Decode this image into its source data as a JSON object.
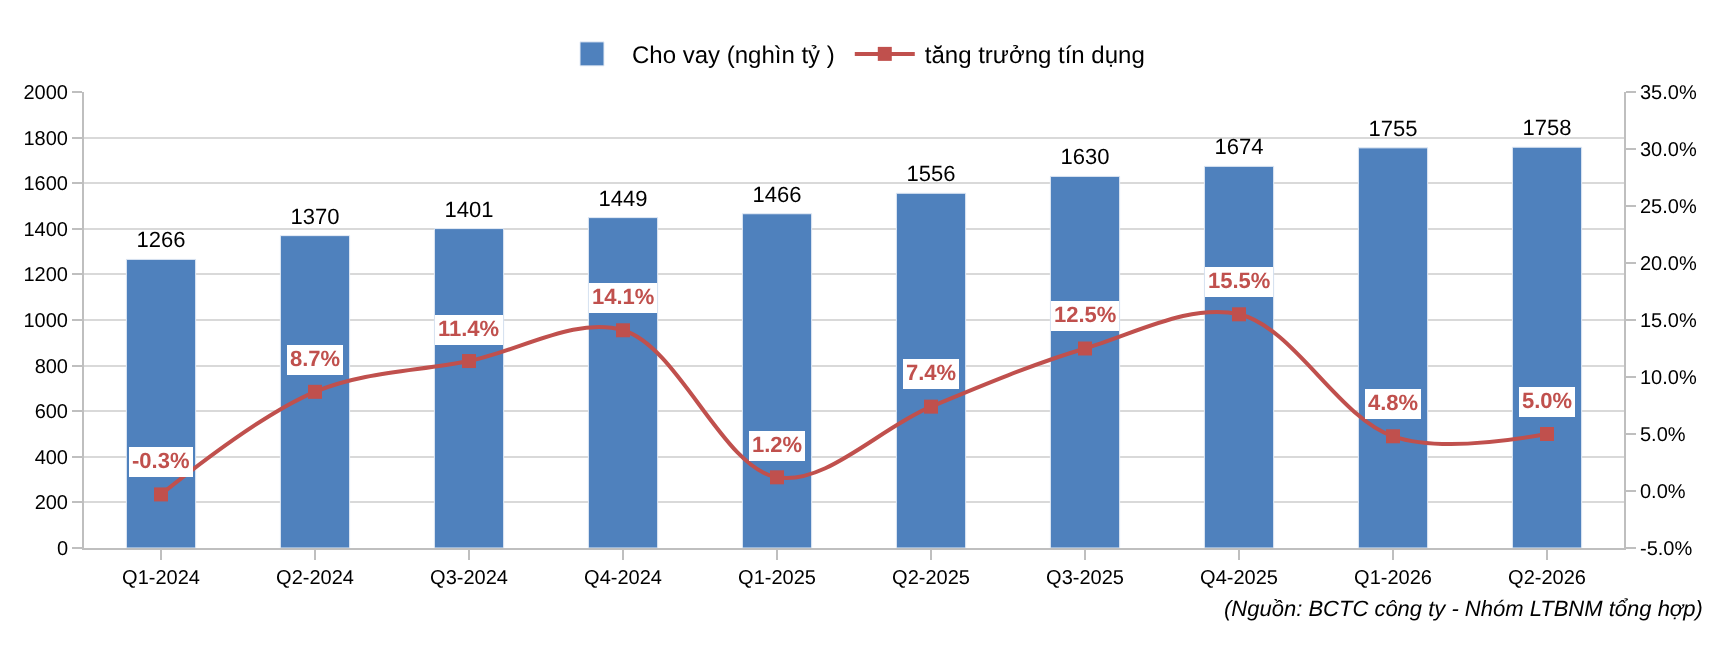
{
  "chart_data": {
    "type": "bar",
    "categories": [
      "Q1-2024",
      "Q2-2024",
      "Q3-2024",
      "Q4-2024",
      "Q1-2025",
      "Q2-2025",
      "Q3-2025",
      "Q4-2025",
      "Q1-2026",
      "Q2-2026"
    ],
    "series": [
      {
        "name": "Cho vay (nghìn tỷ )",
        "color": "#4f81bd",
        "values": [
          1266,
          1370,
          1401,
          1449,
          1466,
          1556,
          1630,
          1674,
          1755,
          1758
        ],
        "value_labels": [
          "1266",
          "1370",
          "1401",
          "1449",
          "1466",
          "1556",
          "1630",
          "1674",
          "1755",
          "1758"
        ]
      },
      {
        "name": "tăng trưởng tín dụng",
        "type": "line",
        "axis": "y2",
        "color": "#c0504d",
        "marker": "square",
        "line_style": "solid",
        "values": [
          -0.3,
          8.7,
          11.4,
          14.1,
          1.2,
          7.4,
          12.5,
          15.5,
          4.8,
          5.0
        ],
        "value_labels": [
          "-0.3%",
          "8.7%",
          "11.4%",
          "14.1%",
          "1.2%",
          "7.4%",
          "12.5%",
          "15.5%",
          "4.8%",
          "5.0%"
        ]
      }
    ],
    "ylim": [
      0,
      2000
    ],
    "yticks": [
      0,
      200,
      400,
      600,
      800,
      1000,
      1200,
      1400,
      1600,
      1800,
      2000
    ],
    "y2lim": [
      -5,
      35
    ],
    "y2ticks": [
      {
        "value": -5,
        "label": "-5.0%"
      },
      {
        "value": 0,
        "label": "0.0%"
      },
      {
        "value": 5,
        "label": "5.0%"
      },
      {
        "value": 10,
        "label": "10.0%"
      },
      {
        "value": 15,
        "label": "15.0%"
      },
      {
        "value": 20,
        "label": "20.0%"
      },
      {
        "value": 25,
        "label": "25.0%"
      },
      {
        "value": 30,
        "label": "30.0%"
      },
      {
        "value": 35,
        "label": "35.0%"
      }
    ],
    "grid": "y",
    "legend": "top",
    "annotations": [
      "(Nguồn: BCTC công ty - Nhóm LTBNM tổng hợp)"
    ]
  }
}
